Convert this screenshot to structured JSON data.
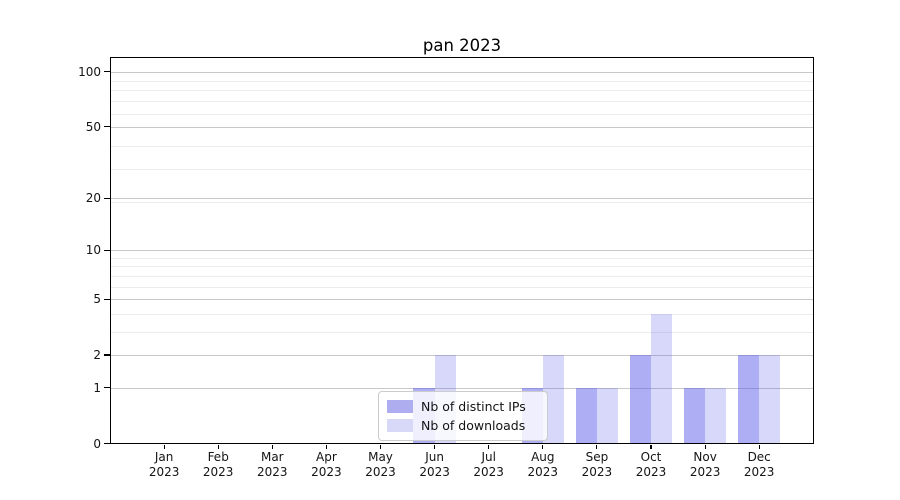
{
  "title": "pan 2023",
  "chart_data": {
    "type": "bar",
    "title": "pan 2023",
    "categories": [
      "Jan 2023",
      "Feb 2023",
      "Mar 2023",
      "Apr 2023",
      "May 2023",
      "Jun 2023",
      "Jul 2023",
      "Aug 2023",
      "Sep 2023",
      "Oct 2023",
      "Nov 2023",
      "Dec 2023"
    ],
    "series": [
      {
        "name": "Nb of distinct IPs",
        "values": [
          0,
          0,
          0,
          0,
          0,
          1,
          0,
          1,
          1,
          2,
          1,
          2
        ],
        "bar_color": "rgba(85,85,235,0.48)",
        "legend_color": "#adadf0"
      },
      {
        "name": "Nb of downloads",
        "values": [
          0,
          0,
          0,
          0,
          0,
          2,
          0,
          2,
          1,
          4,
          1,
          2
        ],
        "bar_color": "rgba(85,85,235,0.23)",
        "legend_color": "#d8d8f8"
      }
    ],
    "xlabel": "",
    "ylabel": "",
    "yscale": "log10(1+value)",
    "ylim": [
      0,
      120
    ],
    "y_major_ticks": [
      0,
      1,
      2,
      5,
      10,
      20,
      50,
      100
    ],
    "y_minor_tick_u_values": [
      4,
      5,
      7,
      8,
      9,
      10,
      20,
      30,
      40,
      60,
      70,
      80,
      90
    ],
    "grid": true,
    "legend_position": "lower-center",
    "colors": {
      "grid_major": "#c9c9c9",
      "grid_minor": "#ececec",
      "spine": "#000000",
      "legend_border": "#cccccc",
      "legend_background": "rgba(255,255,255,0.8)"
    }
  }
}
